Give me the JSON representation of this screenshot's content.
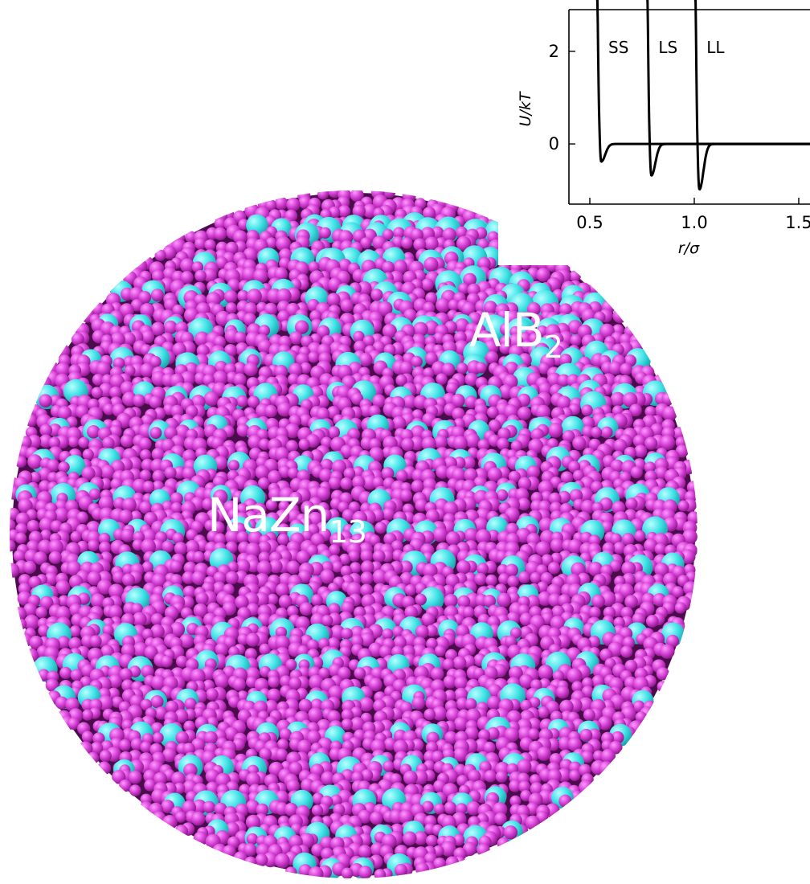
{
  "figure": {
    "colors": {
      "large_particle": "#3fe6e6",
      "small_particle": "#dd44dd",
      "label_text": "#ffffff",
      "curve": "#000000"
    },
    "labels": {
      "nazn13_main": "NaZn",
      "nazn13_sub": "13",
      "alb2_main": "AlB",
      "alb2_sub": "2"
    }
  },
  "chart_data": {
    "type": "line",
    "xlabel": "r/σ",
    "ylabel": "U/kT",
    "xlim": [
      0.4,
      1.6
    ],
    "ylim": [
      -1.3,
      2.9
    ],
    "xticks": [
      0.5,
      1.0,
      1.5
    ],
    "xtick_labels": [
      "0.5",
      "1.0",
      "1.5"
    ],
    "yticks": [
      0,
      2
    ],
    "ytick_labels": [
      "0",
      "2"
    ],
    "grid": false,
    "series": [
      {
        "name": "SS",
        "contact": 0.55,
        "min_x": 0.555,
        "min_y": -0.38
      },
      {
        "name": "LS",
        "contact": 0.79,
        "min_x": 0.795,
        "min_y": -0.68
      },
      {
        "name": "LL",
        "contact": 1.02,
        "min_x": 1.025,
        "min_y": -0.98
      }
    ]
  }
}
